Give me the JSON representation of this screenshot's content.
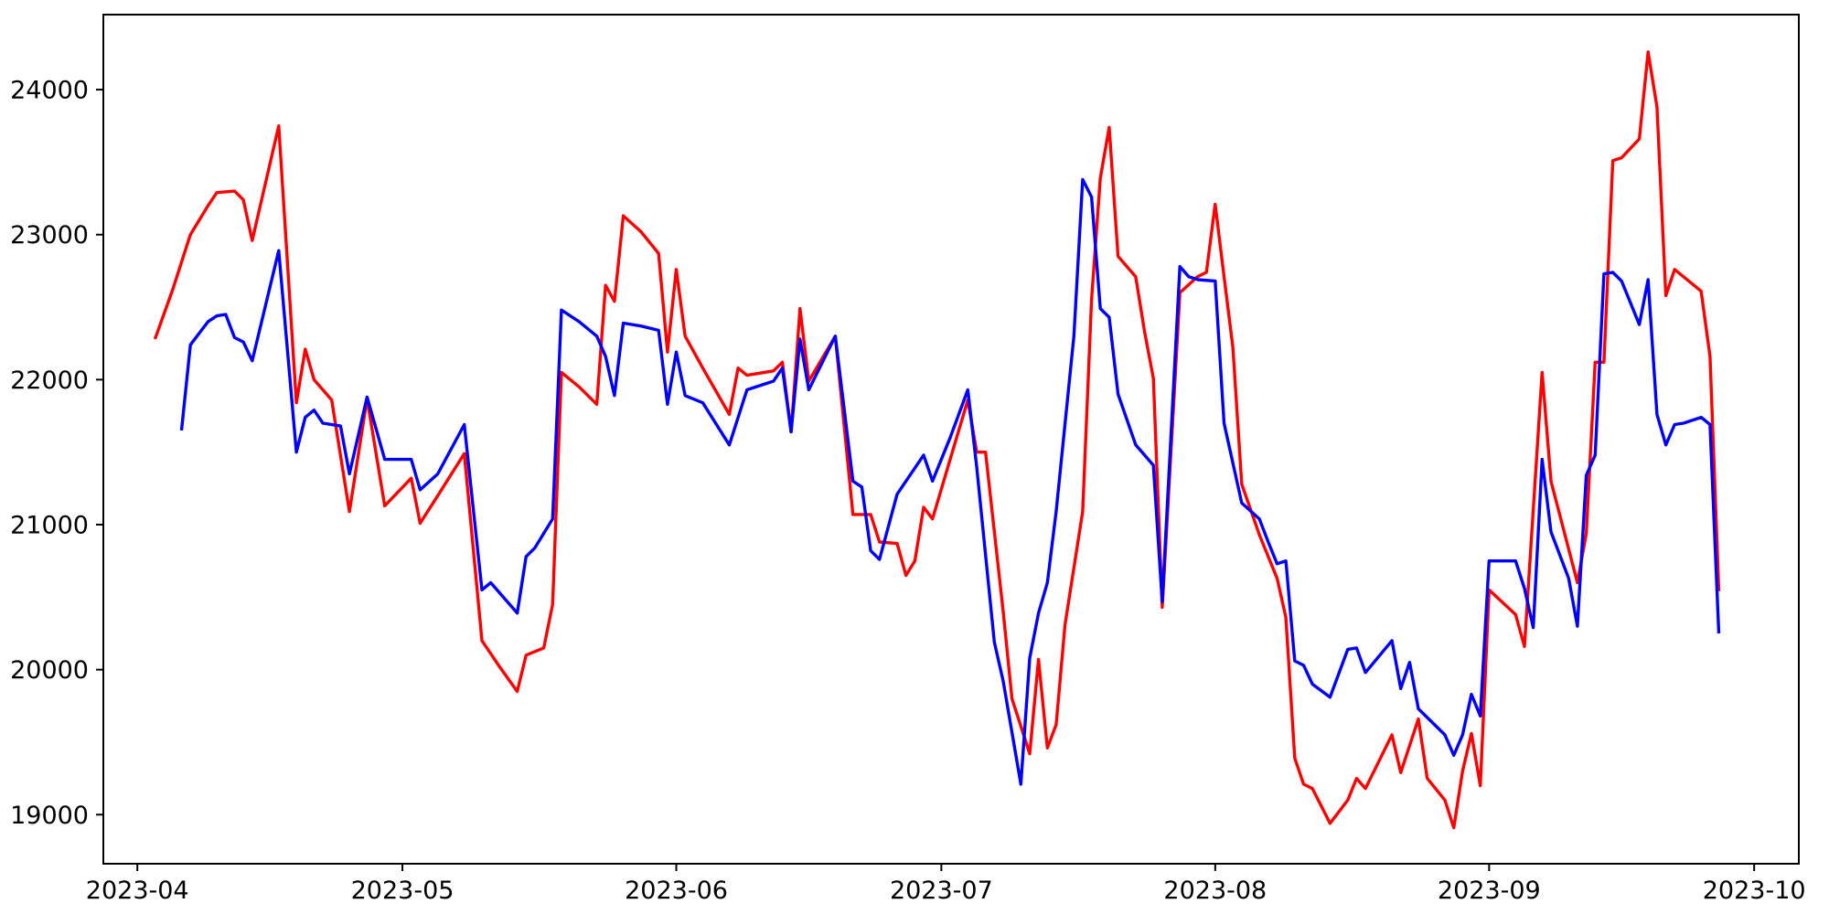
{
  "chart_data": {
    "type": "line",
    "title": "",
    "xlabel": "",
    "ylabel": "",
    "grid": false,
    "legend_position": "none",
    "background_color": "#ffffff",
    "frame_color": "#000000",
    "x_axis": {
      "kind": "date",
      "range_visible": [
        "2023-03-28",
        "2023-10-06"
      ],
      "ticks": [
        {
          "label": "2023-04",
          "date": "2023-04-01"
        },
        {
          "label": "2023-05",
          "date": "2023-05-01"
        },
        {
          "label": "2023-06",
          "date": "2023-06-01"
        },
        {
          "label": "2023-07",
          "date": "2023-07-01"
        },
        {
          "label": "2023-08",
          "date": "2023-08-01"
        },
        {
          "label": "2023-09",
          "date": "2023-09-01"
        },
        {
          "label": "2023-10",
          "date": "2023-10-01"
        }
      ]
    },
    "y_axis": {
      "range_visible": [
        18660,
        24520
      ],
      "ticks": [
        {
          "label": "19000",
          "value": 19000
        },
        {
          "label": "20000",
          "value": 20000
        },
        {
          "label": "21000",
          "value": 21000
        },
        {
          "label": "22000",
          "value": 22000
        },
        {
          "label": "23000",
          "value": 23000
        },
        {
          "label": "24000",
          "value": 24000
        }
      ]
    },
    "series": [
      {
        "name": "red-series",
        "color": "#ff0000",
        "points": [
          [
            "2023-04-03",
            22280
          ],
          [
            "2023-04-05",
            22620
          ],
          [
            "2023-04-07",
            23000
          ],
          [
            "2023-04-09",
            23200
          ],
          [
            "2023-04-10",
            23290
          ],
          [
            "2023-04-12",
            23300
          ],
          [
            "2023-04-13",
            23240
          ],
          [
            "2023-04-14",
            22960
          ],
          [
            "2023-04-17",
            23750
          ],
          [
            "2023-04-19",
            21840
          ],
          [
            "2023-04-20",
            22210
          ],
          [
            "2023-04-21",
            22000
          ],
          [
            "2023-04-23",
            21860
          ],
          [
            "2023-04-25",
            21090
          ],
          [
            "2023-04-27",
            21870
          ],
          [
            "2023-04-28",
            21500
          ],
          [
            "2023-04-29",
            21130
          ],
          [
            "2023-05-02",
            21320
          ],
          [
            "2023-05-03",
            21010
          ],
          [
            "2023-05-05",
            21200
          ],
          [
            "2023-05-08",
            21490
          ],
          [
            "2023-05-10",
            20200
          ],
          [
            "2023-05-12",
            20020
          ],
          [
            "2023-05-14",
            19850
          ],
          [
            "2023-05-15",
            20100
          ],
          [
            "2023-05-17",
            20150
          ],
          [
            "2023-05-18",
            20450
          ],
          [
            "2023-05-19",
            22050
          ],
          [
            "2023-05-21",
            21950
          ],
          [
            "2023-05-23",
            21830
          ],
          [
            "2023-05-24",
            22650
          ],
          [
            "2023-05-25",
            22540
          ],
          [
            "2023-05-26",
            23130
          ],
          [
            "2023-05-28",
            23020
          ],
          [
            "2023-05-30",
            22870
          ],
          [
            "2023-05-31",
            22190
          ],
          [
            "2023-06-01",
            22760
          ],
          [
            "2023-06-02",
            22300
          ],
          [
            "2023-06-04",
            22080
          ],
          [
            "2023-06-07",
            21760
          ],
          [
            "2023-06-08",
            22080
          ],
          [
            "2023-06-09",
            22030
          ],
          [
            "2023-06-12",
            22060
          ],
          [
            "2023-06-13",
            22120
          ],
          [
            "2023-06-14",
            21640
          ],
          [
            "2023-06-15",
            22490
          ],
          [
            "2023-06-16",
            21990
          ],
          [
            "2023-06-19",
            22300
          ],
          [
            "2023-06-21",
            21070
          ],
          [
            "2023-06-23",
            21070
          ],
          [
            "2023-06-24",
            20880
          ],
          [
            "2023-06-26",
            20870
          ],
          [
            "2023-06-27",
            20650
          ],
          [
            "2023-06-28",
            20750
          ],
          [
            "2023-06-29",
            21120
          ],
          [
            "2023-06-30",
            21040
          ],
          [
            "2023-07-02",
            21450
          ],
          [
            "2023-07-04",
            21860
          ],
          [
            "2023-07-05",
            21500
          ],
          [
            "2023-07-06",
            21500
          ],
          [
            "2023-07-08",
            20400
          ],
          [
            "2023-07-09",
            19800
          ],
          [
            "2023-07-11",
            19420
          ],
          [
            "2023-07-12",
            20070
          ],
          [
            "2023-07-13",
            19460
          ],
          [
            "2023-07-14",
            19620
          ],
          [
            "2023-07-15",
            20310
          ],
          [
            "2023-07-17",
            21090
          ],
          [
            "2023-07-18",
            22550
          ],
          [
            "2023-07-19",
            23390
          ],
          [
            "2023-07-20",
            23740
          ],
          [
            "2023-07-21",
            22850
          ],
          [
            "2023-07-23",
            22710
          ],
          [
            "2023-07-24",
            22330
          ],
          [
            "2023-07-25",
            22010
          ],
          [
            "2023-07-26",
            20430
          ],
          [
            "2023-07-28",
            22600
          ],
          [
            "2023-07-30",
            22710
          ],
          [
            "2023-07-31",
            22740
          ],
          [
            "2023-08-01",
            23210
          ],
          [
            "2023-08-02",
            22710
          ],
          [
            "2023-08-03",
            22220
          ],
          [
            "2023-08-04",
            21280
          ],
          [
            "2023-08-06",
            20930
          ],
          [
            "2023-08-08",
            20630
          ],
          [
            "2023-08-09",
            20360
          ],
          [
            "2023-08-10",
            19390
          ],
          [
            "2023-08-11",
            19210
          ],
          [
            "2023-08-12",
            19180
          ],
          [
            "2023-08-14",
            18940
          ],
          [
            "2023-08-16",
            19100
          ],
          [
            "2023-08-17",
            19250
          ],
          [
            "2023-08-18",
            19180
          ],
          [
            "2023-08-21",
            19550
          ],
          [
            "2023-08-22",
            19290
          ],
          [
            "2023-08-24",
            19660
          ],
          [
            "2023-08-25",
            19250
          ],
          [
            "2023-08-27",
            19100
          ],
          [
            "2023-08-28",
            18910
          ],
          [
            "2023-08-29",
            19300
          ],
          [
            "2023-08-30",
            19560
          ],
          [
            "2023-08-31",
            19200
          ],
          [
            "2023-09-01",
            20550
          ],
          [
            "2023-09-04",
            20380
          ],
          [
            "2023-09-05",
            20160
          ],
          [
            "2023-09-07",
            22050
          ],
          [
            "2023-09-08",
            21300
          ],
          [
            "2023-09-11",
            20600
          ],
          [
            "2023-09-12",
            20940
          ],
          [
            "2023-09-13",
            22120
          ],
          [
            "2023-09-14",
            22120
          ],
          [
            "2023-09-15",
            23510
          ],
          [
            "2023-09-16",
            23530
          ],
          [
            "2023-09-18",
            23660
          ],
          [
            "2023-09-19",
            24260
          ],
          [
            "2023-09-20",
            23880
          ],
          [
            "2023-09-21",
            22580
          ],
          [
            "2023-09-22",
            22760
          ],
          [
            "2023-09-25",
            22610
          ],
          [
            "2023-09-26",
            22160
          ],
          [
            "2023-09-27",
            20540
          ]
        ]
      },
      {
        "name": "blue-series",
        "color": "#0000ff",
        "points": [
          [
            "2023-04-06",
            21650
          ],
          [
            "2023-04-07",
            22240
          ],
          [
            "2023-04-09",
            22400
          ],
          [
            "2023-04-10",
            22440
          ],
          [
            "2023-04-11",
            22450
          ],
          [
            "2023-04-12",
            22290
          ],
          [
            "2023-04-13",
            22260
          ],
          [
            "2023-04-14",
            22130
          ],
          [
            "2023-04-17",
            22890
          ],
          [
            "2023-04-19",
            21500
          ],
          [
            "2023-04-20",
            21740
          ],
          [
            "2023-04-21",
            21790
          ],
          [
            "2023-04-22",
            21700
          ],
          [
            "2023-04-24",
            21680
          ],
          [
            "2023-04-25",
            21350
          ],
          [
            "2023-04-27",
            21880
          ],
          [
            "2023-04-29",
            21450
          ],
          [
            "2023-05-02",
            21450
          ],
          [
            "2023-05-03",
            21240
          ],
          [
            "2023-05-05",
            21350
          ],
          [
            "2023-05-08",
            21690
          ],
          [
            "2023-05-10",
            20550
          ],
          [
            "2023-05-11",
            20600
          ],
          [
            "2023-05-14",
            20390
          ],
          [
            "2023-05-15",
            20780
          ],
          [
            "2023-05-16",
            20840
          ],
          [
            "2023-05-18",
            21040
          ],
          [
            "2023-05-19",
            22480
          ],
          [
            "2023-05-21",
            22400
          ],
          [
            "2023-05-23",
            22300
          ],
          [
            "2023-05-24",
            22160
          ],
          [
            "2023-05-25",
            21890
          ],
          [
            "2023-05-26",
            22390
          ],
          [
            "2023-05-28",
            22370
          ],
          [
            "2023-05-30",
            22340
          ],
          [
            "2023-05-31",
            21830
          ],
          [
            "2023-06-01",
            22190
          ],
          [
            "2023-06-02",
            21890
          ],
          [
            "2023-06-04",
            21840
          ],
          [
            "2023-06-07",
            21550
          ],
          [
            "2023-06-09",
            21930
          ],
          [
            "2023-06-12",
            21990
          ],
          [
            "2023-06-13",
            22080
          ],
          [
            "2023-06-14",
            21640
          ],
          [
            "2023-06-15",
            22280
          ],
          [
            "2023-06-16",
            21930
          ],
          [
            "2023-06-19",
            22300
          ],
          [
            "2023-06-21",
            21300
          ],
          [
            "2023-06-22",
            21260
          ],
          [
            "2023-06-23",
            20820
          ],
          [
            "2023-06-24",
            20760
          ],
          [
            "2023-06-26",
            21210
          ],
          [
            "2023-06-29",
            21480
          ],
          [
            "2023-06-30",
            21300
          ],
          [
            "2023-07-02",
            21600
          ],
          [
            "2023-07-04",
            21930
          ],
          [
            "2023-07-05",
            21400
          ],
          [
            "2023-07-07",
            20190
          ],
          [
            "2023-07-08",
            19920
          ],
          [
            "2023-07-10",
            19210
          ],
          [
            "2023-07-11",
            20080
          ],
          [
            "2023-07-12",
            20390
          ],
          [
            "2023-07-13",
            20600
          ],
          [
            "2023-07-14",
            21090
          ],
          [
            "2023-07-16",
            22300
          ],
          [
            "2023-07-17",
            23380
          ],
          [
            "2023-07-18",
            23260
          ],
          [
            "2023-07-19",
            22490
          ],
          [
            "2023-07-20",
            22430
          ],
          [
            "2023-07-21",
            21900
          ],
          [
            "2023-07-23",
            21550
          ],
          [
            "2023-07-25",
            21410
          ],
          [
            "2023-07-26",
            20470
          ],
          [
            "2023-07-28",
            22780
          ],
          [
            "2023-07-29",
            22710
          ],
          [
            "2023-07-30",
            22690
          ],
          [
            "2023-08-01",
            22680
          ],
          [
            "2023-08-02",
            21700
          ],
          [
            "2023-08-04",
            21150
          ],
          [
            "2023-08-06",
            21040
          ],
          [
            "2023-08-07",
            20880
          ],
          [
            "2023-08-08",
            20730
          ],
          [
            "2023-08-09",
            20750
          ],
          [
            "2023-08-10",
            20060
          ],
          [
            "2023-08-11",
            20030
          ],
          [
            "2023-08-12",
            19900
          ],
          [
            "2023-08-14",
            19810
          ],
          [
            "2023-08-16",
            20140
          ],
          [
            "2023-08-17",
            20150
          ],
          [
            "2023-08-18",
            19980
          ],
          [
            "2023-08-21",
            20200
          ],
          [
            "2023-08-22",
            19870
          ],
          [
            "2023-08-23",
            20050
          ],
          [
            "2023-08-24",
            19730
          ],
          [
            "2023-08-27",
            19550
          ],
          [
            "2023-08-28",
            19410
          ],
          [
            "2023-08-29",
            19550
          ],
          [
            "2023-08-30",
            19830
          ],
          [
            "2023-08-31",
            19680
          ],
          [
            "2023-09-01",
            20750
          ],
          [
            "2023-09-04",
            20750
          ],
          [
            "2023-09-05",
            20560
          ],
          [
            "2023-09-06",
            20290
          ],
          [
            "2023-09-07",
            21450
          ],
          [
            "2023-09-08",
            20950
          ],
          [
            "2023-09-10",
            20630
          ],
          [
            "2023-09-11",
            20300
          ],
          [
            "2023-09-12",
            21340
          ],
          [
            "2023-09-13",
            21480
          ],
          [
            "2023-09-14",
            22730
          ],
          [
            "2023-09-15",
            22740
          ],
          [
            "2023-09-16",
            22680
          ],
          [
            "2023-09-18",
            22380
          ],
          [
            "2023-09-19",
            22690
          ],
          [
            "2023-09-20",
            21760
          ],
          [
            "2023-09-21",
            21550
          ],
          [
            "2023-09-22",
            21690
          ],
          [
            "2023-09-23",
            21700
          ],
          [
            "2023-09-25",
            21740
          ],
          [
            "2023-09-26",
            21690
          ],
          [
            "2023-09-27",
            20250
          ]
        ]
      }
    ]
  }
}
